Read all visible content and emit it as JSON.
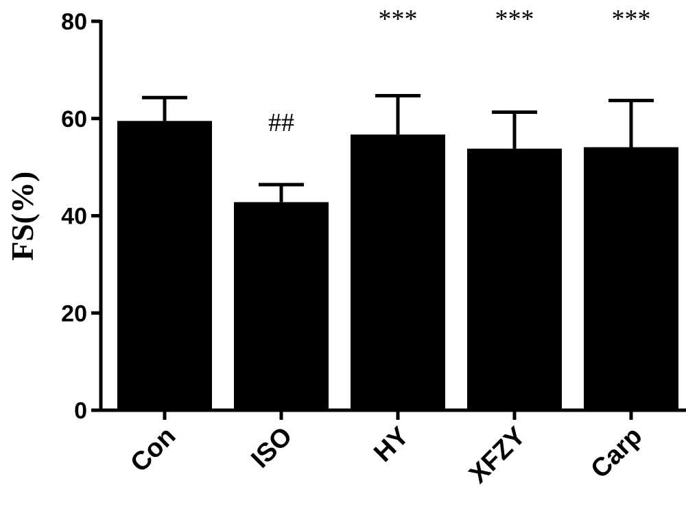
{
  "chart_data": {
    "type": "bar",
    "title": "",
    "xlabel": "",
    "ylabel": "FS(%)",
    "ylim": [
      0,
      80
    ],
    "yticks": [
      "0",
      "20",
      "40",
      "60",
      "80"
    ],
    "categories": [
      "Con",
      "ISO",
      "HY",
      "XFZY",
      "Carp"
    ],
    "values": [
      59.5,
      42.8,
      56.7,
      53.8,
      54.1
    ],
    "errors": [
      4.8,
      3.6,
      8.0,
      7.5,
      9.6
    ],
    "annotations": [
      "",
      "##",
      "***",
      "***",
      "***"
    ],
    "bar_color": "#000000",
    "grid": false
  }
}
